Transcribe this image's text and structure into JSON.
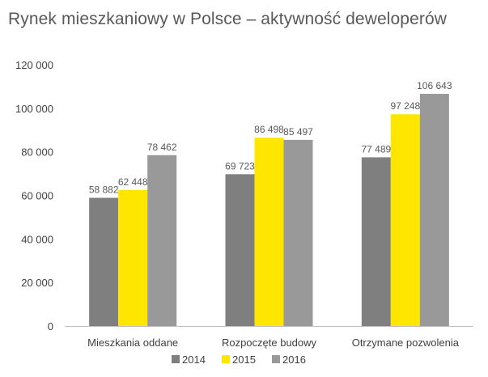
{
  "chart_data": {
    "type": "bar",
    "title": "Rynek mieszkaniowy w Polsce – aktywność deweloperów",
    "categories": [
      "Mieszkania oddane",
      "Rozpoczęte budowy",
      "Otrzymane pozwolenia"
    ],
    "series": [
      {
        "name": "2014",
        "color": "#7f7f7f",
        "values": [
          58882,
          69723,
          77489
        ],
        "labels": [
          "58 882",
          "69 723",
          "77 489"
        ]
      },
      {
        "name": "2015",
        "color": "#ffe600",
        "values": [
          62448,
          86498,
          97248
        ],
        "labels": [
          "62 448",
          "86 498",
          "97 248"
        ]
      },
      {
        "name": "2016",
        "color": "#999999",
        "values": [
          78462,
          85497,
          106643
        ],
        "labels": [
          "78 462",
          "85 497",
          "106 643"
        ]
      }
    ],
    "ylim": [
      0,
      120000
    ],
    "yticks": [
      0,
      20000,
      40000,
      60000,
      80000,
      100000,
      120000
    ],
    "ytick_labels": [
      "0",
      "20 000",
      "40 000",
      "60 000",
      "80 000",
      "100 000",
      "120 000"
    ],
    "grid": false,
    "legend_position": "bottom"
  }
}
